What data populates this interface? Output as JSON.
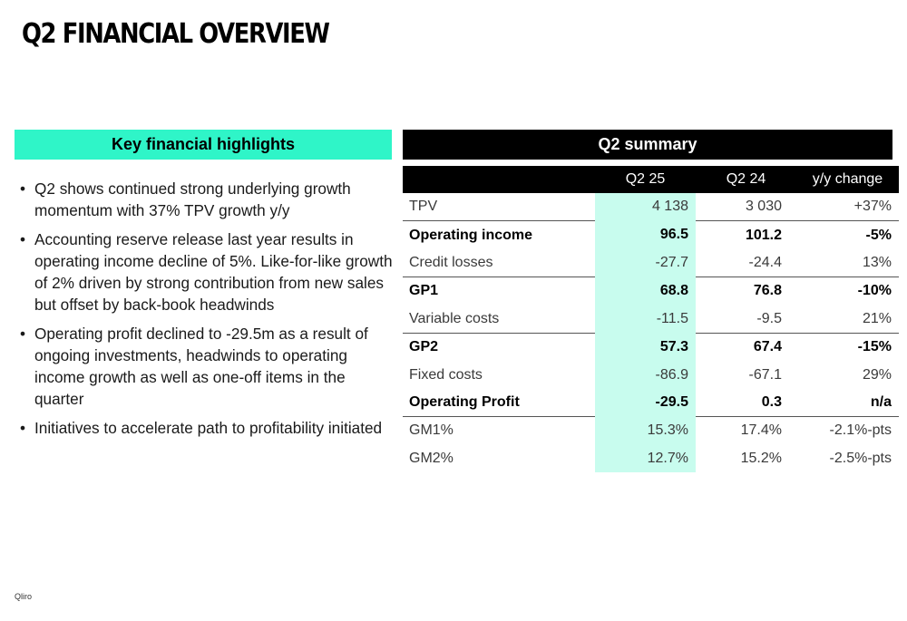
{
  "page_title": "Q2 FINANCIAL OVERVIEW",
  "highlights": {
    "title": "Key financial highlights",
    "bullet_char": "•",
    "items": [
      "Q2 shows continued strong underlying growth momentum with 37% TPV growth y/y",
      "Accounting reserve release last year results in operating income decline of 5%. Like-for-like growth of 2% driven by strong contribution from new sales but offset by back-book headwinds",
      "Operating profit declined to -29.5m as a result of ongoing investments, headwinds to operating income growth as well as one-off items in the quarter",
      "Initiatives to accelerate path to profitability initiated"
    ]
  },
  "summary": {
    "title": "Q2 summary",
    "columns": [
      "",
      "Q2 25",
      "Q2 24",
      "y/y change"
    ],
    "rows": [
      {
        "label": "TPV",
        "q2_25": "4 138",
        "q2_24": "3 030",
        "yy": "+37%"
      },
      {
        "label": "Operating income",
        "q2_25": "96.5",
        "q2_24": "101.2",
        "yy": "-5%"
      },
      {
        "label": "Credit losses",
        "q2_25": "-27.7",
        "q2_24": "-24.4",
        "yy": "13%"
      },
      {
        "label": "GP1",
        "q2_25": "68.8",
        "q2_24": "76.8",
        "yy": "-10%"
      },
      {
        "label": "Variable costs",
        "q2_25": "-11.5",
        "q2_24": "-9.5",
        "yy": "21%"
      },
      {
        "label": "GP2",
        "q2_25": "57.3",
        "q2_24": "67.4",
        "yy": "-15%"
      },
      {
        "label": "Fixed costs",
        "q2_25": "-86.9",
        "q2_24": "-67.1",
        "yy": "29%"
      },
      {
        "label": "Operating Profit",
        "q2_25": "-29.5",
        "q2_24": "0.3",
        "yy": "n/a"
      },
      {
        "label": "GM1%",
        "q2_25": "15.3%",
        "q2_24": "17.4%",
        "yy": "-2.1%-pts"
      },
      {
        "label": "GM2%",
        "q2_25": "12.7%",
        "q2_24": "15.2%",
        "yy": "-2.5%-pts"
      }
    ]
  },
  "footer": {
    "logo_text": "Qliro"
  },
  "colors": {
    "accent": "#2ff5c8",
    "highlight_column": "#c8fcee",
    "header_bg": "#000000"
  }
}
